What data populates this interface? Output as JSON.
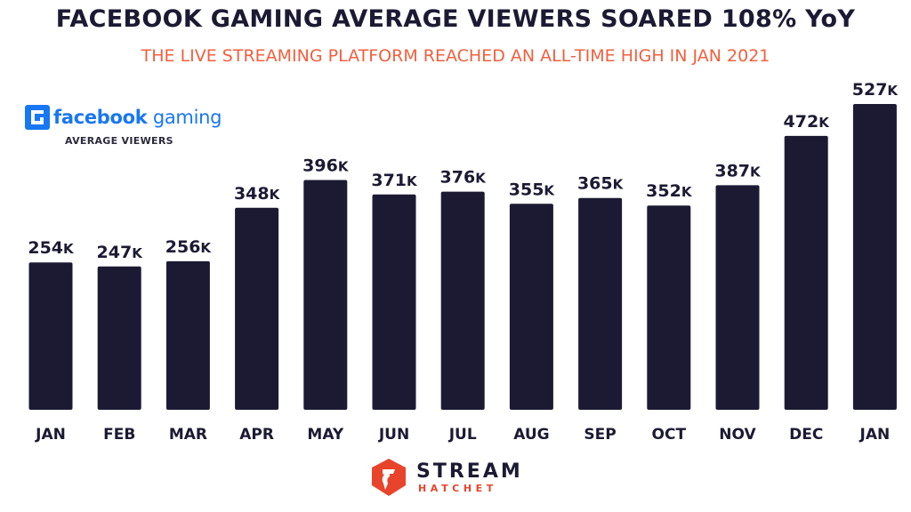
{
  "header": {
    "title": "FACEBOOK GAMING AVERAGE VIEWERS SOARED 108% YoY",
    "subtitle": "THE LIVE STREAMING PLATFORM REACHED AN ALL-TIME HIGH IN JAN 2021"
  },
  "brand": {
    "name_bold": "facebook",
    "name_light": " gaming",
    "metric": "AVERAGE VIEWERS"
  },
  "footer": {
    "logo_line1": "STREAM",
    "logo_line2": "HATCHET"
  },
  "colors": {
    "bar": "#1c1a33",
    "title": "#1c1a33",
    "subtitle": "#f0603f",
    "facebook_blue": "#1877f2",
    "logo_red": "#e8442c"
  },
  "chart_data": {
    "type": "bar",
    "title": "FACEBOOK GAMING AVERAGE VIEWERS SOARED 108% YoY",
    "subtitle": "THE LIVE STREAMING PLATFORM REACHED AN ALL-TIME HIGH IN JAN 2021",
    "categories": [
      "JAN",
      "FEB",
      "MAR",
      "APR",
      "MAY",
      "JUN",
      "JUL",
      "AUG",
      "SEP",
      "OCT",
      "NOV",
      "DEC",
      "JAN"
    ],
    "values": [
      254,
      247,
      256,
      348,
      396,
      371,
      376,
      355,
      365,
      352,
      387,
      472,
      527
    ],
    "value_labels": [
      "254",
      "247",
      "256",
      "348",
      "396",
      "371",
      "376",
      "355",
      "365",
      "352",
      "387",
      "472",
      "527"
    ],
    "value_suffix": "K",
    "xlabel": "",
    "ylabel": "",
    "ylim": [
      0,
      527
    ],
    "grid": false,
    "axes_visible": false,
    "legend": "none"
  }
}
